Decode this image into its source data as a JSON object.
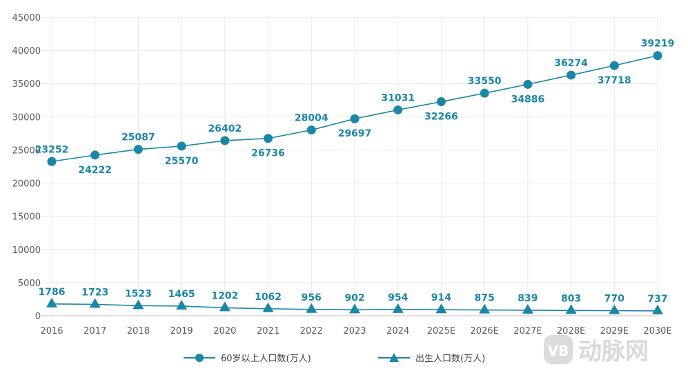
{
  "chart_data": {
    "type": "line",
    "categories": [
      "2016",
      "2017",
      "2018",
      "2019",
      "2020",
      "2021",
      "2022",
      "2023",
      "2024",
      "2025E",
      "2026E",
      "2027E",
      "2028E",
      "2029E",
      "2030E"
    ],
    "series": [
      {
        "name": "60岁以上人口数(万人)",
        "marker": "circle",
        "values": [
          23252,
          24222,
          25087,
          25570,
          26402,
          26736,
          28004,
          29697,
          31031,
          32266,
          33550,
          34886,
          36274,
          37718,
          39219
        ],
        "label_pos": [
          "above",
          "below",
          "above",
          "below",
          "above",
          "below",
          "above",
          "below",
          "above",
          "below",
          "above",
          "below",
          "above",
          "below",
          "above"
        ]
      },
      {
        "name": "出生人口数(万人)",
        "marker": "triangle",
        "values": [
          1786,
          1723,
          1523,
          1465,
          1202,
          1062,
          956,
          902,
          954,
          914,
          875,
          839,
          803,
          770,
          737
        ],
        "label_pos": [
          "above",
          "above",
          "above",
          "above",
          "above",
          "above",
          "above",
          "above",
          "above",
          "above",
          "above",
          "above",
          "above",
          "above",
          "above"
        ]
      }
    ],
    "y_ticks": [
      0,
      5000,
      10000,
      15000,
      20000,
      25000,
      30000,
      35000,
      40000,
      45000
    ],
    "ylim": [
      0,
      45000
    ],
    "grid": true,
    "legend": "bottom-center",
    "color": "#1a86a8"
  },
  "watermark": {
    "icon": "vb-logo-icon",
    "text": "动脉网"
  }
}
